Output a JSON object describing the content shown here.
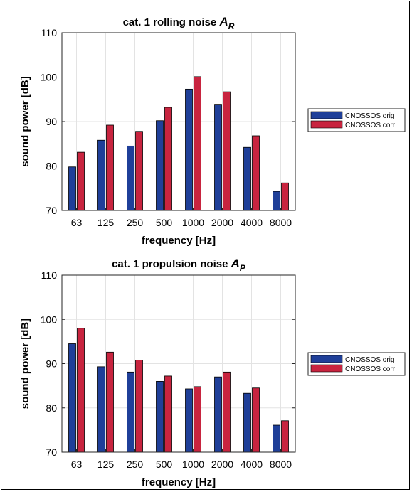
{
  "chart_data": [
    {
      "type": "bar",
      "title": "cat. 1 rolling noise",
      "title_symbol": "A",
      "title_subscript": "R",
      "xlabel": "frequency [Hz]",
      "ylabel": "sound power [dB]",
      "categories": [
        "63",
        "125",
        "250",
        "500",
        "1000",
        "2000",
        "4000",
        "8000"
      ],
      "ylim": [
        70,
        110
      ],
      "yticks": [
        70,
        80,
        90,
        100,
        110
      ],
      "grid": true,
      "legend_position": "outside-right",
      "series": [
        {
          "name": "CNOSSOS orig",
          "color": "#1f3f99",
          "values": [
            79.8,
            85.8,
            84.5,
            90.2,
            97.3,
            93.9,
            84.2,
            74.3
          ]
        },
        {
          "name": "CNOSSOS corr",
          "color": "#c8243f",
          "values": [
            83.1,
            89.2,
            87.8,
            93.2,
            100.1,
            96.7,
            86.8,
            76.2
          ]
        }
      ]
    },
    {
      "type": "bar",
      "title": "cat. 1 propulsion noise",
      "title_symbol": "A",
      "title_subscript": "P",
      "xlabel": "frequency [Hz]",
      "ylabel": "sound power [dB]",
      "categories": [
        "63",
        "125",
        "250",
        "500",
        "1000",
        "2000",
        "4000",
        "8000"
      ],
      "ylim": [
        70,
        110
      ],
      "yticks": [
        70,
        80,
        90,
        100,
        110
      ],
      "grid": true,
      "legend_position": "outside-right",
      "series": [
        {
          "name": "CNOSSOS orig",
          "color": "#1f3f99",
          "values": [
            94.5,
            89.3,
            88.1,
            86.0,
            84.3,
            87.0,
            83.3,
            76.1
          ]
        },
        {
          "name": "CNOSSOS corr",
          "color": "#c8243f",
          "values": [
            98.0,
            92.6,
            90.8,
            87.2,
            84.8,
            88.1,
            84.5,
            77.1
          ]
        }
      ]
    }
  ]
}
